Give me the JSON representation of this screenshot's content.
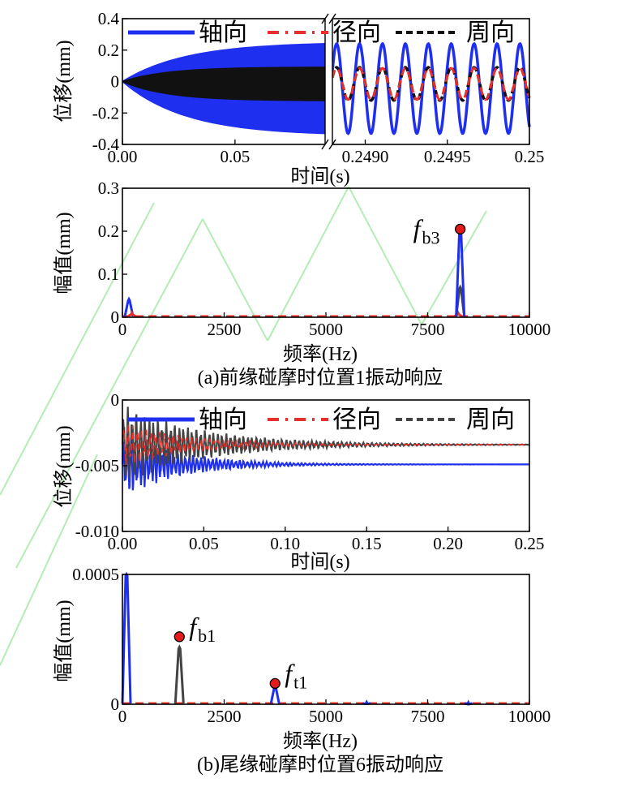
{
  "figure": {
    "caption_a": "(a)前缘碰摩时位置1振动响应",
    "caption_b": "(b)尾缘碰摩时位置6振动响应"
  },
  "colors": {
    "axial": "#1f2ff0",
    "radial": "#e8302a",
    "circumferential": "#111111",
    "circ_b": "#444444",
    "marker": "#e31a1c",
    "watermark": "#b5ecb5"
  },
  "legend": {
    "axial": "轴向",
    "radial": "径向",
    "circumferential": "周向"
  },
  "chart_data": [
    {
      "id": "a-time",
      "type": "line",
      "xlabel": "时间(s)",
      "ylabel": "位移(mm)",
      "ylim": [
        -0.4,
        0.4
      ],
      "yticks": [
        "0.4",
        "0.2",
        "0",
        "-0.2",
        "-0.4"
      ],
      "x_break": true,
      "left_segment": {
        "xlim": [
          0.0,
          0.09
        ],
        "xticks": [
          "0.00",
          "0.05"
        ]
      },
      "right_segment": {
        "xlim": [
          0.2488,
          0.25
        ],
        "xticks": [
          "0.2490",
          "0.2495",
          "0.25"
        ]
      },
      "series": [
        {
          "name": "轴向",
          "envelope_upper_final": 0.24,
          "envelope_lower_final": -0.33,
          "cycles_in_right_segment": 8.6
        },
        {
          "name": "径向",
          "envelope_upper_final": 0.09,
          "envelope_lower_final": -0.12
        },
        {
          "name": "周向",
          "envelope_upper_final": 0.09,
          "envelope_lower_final": -0.12
        }
      ]
    },
    {
      "id": "a-freq",
      "type": "line",
      "xlabel": "频率(Hz)",
      "ylabel": "幅值(mm)",
      "xlim": [
        0,
        10000
      ],
      "ylim": [
        0,
        0.3
      ],
      "xticks": [
        "0",
        "2500",
        "5000",
        "7500",
        "10000"
      ],
      "yticks": [
        "0.3",
        "0.2",
        "0.1",
        "0"
      ],
      "peaks": [
        {
          "series": "轴向",
          "x": 160,
          "y": 0.042
        },
        {
          "series": "径向",
          "x": 230,
          "y": 0.01
        },
        {
          "series": "径向",
          "x": 8250,
          "y": 0.01
        },
        {
          "series": "周向",
          "x": 8300,
          "y": 0.07
        },
        {
          "series": "轴向",
          "x": 8300,
          "y": 0.205
        }
      ],
      "annotations": [
        {
          "label": "f",
          "sub": "b3",
          "x": 8300,
          "y": 0.205
        }
      ]
    },
    {
      "id": "b-time",
      "type": "line",
      "xlabel": "时间(s)",
      "ylabel": "位移(mm)",
      "xlim": [
        0,
        0.25
      ],
      "ylim": [
        -0.01,
        0
      ],
      "xticks": [
        "0.00",
        "0.05",
        "0.10",
        "0.15",
        "0.20",
        "0.25"
      ],
      "yticks": [
        "0",
        "-0.005",
        "-0.010"
      ],
      "series": [
        {
          "name": "轴向",
          "final_value": -0.0049,
          "initial_min": -0.0075
        },
        {
          "name": "径向",
          "final_value": -0.0034
        },
        {
          "name": "周向",
          "final_value": -0.0034,
          "initial_max": -0.0003
        }
      ]
    },
    {
      "id": "b-freq",
      "type": "line",
      "xlabel": "频率(Hz)",
      "ylabel": "幅值(mm)",
      "xlim": [
        0,
        10000
      ],
      "ylim": [
        0,
        0.0005
      ],
      "xticks": [
        "0",
        "2500",
        "5000",
        "7500",
        "10000"
      ],
      "yticks": [
        "0.0005",
        "0"
      ],
      "peaks": [
        {
          "series": "轴向",
          "x": 100,
          "y": 0.0005
        },
        {
          "series": "周向",
          "x": 1400,
          "y": 0.00022
        },
        {
          "series": "轴向",
          "x": 3750,
          "y": 7e-05
        },
        {
          "series": "轴向",
          "x": 6000,
          "y": 8e-06
        },
        {
          "series": "轴向",
          "x": 8500,
          "y": 7e-06
        }
      ],
      "annotations": [
        {
          "label": "f",
          "sub": "b1",
          "x": 1400,
          "y": 0.00026
        },
        {
          "label": "f",
          "sub": "t1",
          "x": 3750,
          "y": 8e-05
        }
      ]
    }
  ]
}
